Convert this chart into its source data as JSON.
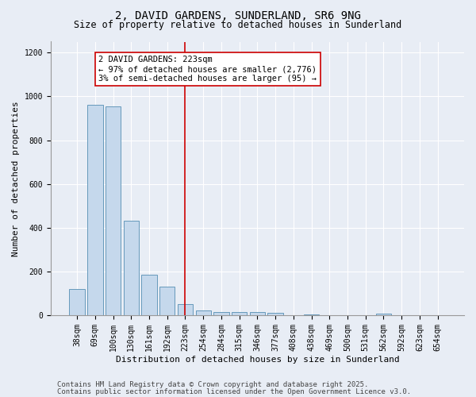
{
  "title1": "2, DAVID GARDENS, SUNDERLAND, SR6 9NG",
  "title2": "Size of property relative to detached houses in Sunderland",
  "xlabel": "Distribution of detached houses by size in Sunderland",
  "ylabel": "Number of detached properties",
  "categories": [
    "38sqm",
    "69sqm",
    "100sqm",
    "130sqm",
    "161sqm",
    "192sqm",
    "223sqm",
    "254sqm",
    "284sqm",
    "315sqm",
    "346sqm",
    "377sqm",
    "408sqm",
    "438sqm",
    "469sqm",
    "500sqm",
    "531sqm",
    "562sqm",
    "592sqm",
    "623sqm",
    "654sqm"
  ],
  "values": [
    120,
    960,
    955,
    430,
    185,
    130,
    50,
    22,
    16,
    15,
    15,
    12,
    0,
    5,
    0,
    0,
    0,
    8,
    0,
    0,
    0
  ],
  "bar_color": "#c5d8ec",
  "bar_edge_color": "#6699bb",
  "highlight_index": 6,
  "highlight_line_color": "#cc0000",
  "annotation_line1": "2 DAVID GARDENS: 223sqm",
  "annotation_line2": "← 97% of detached houses are smaller (2,776)",
  "annotation_line3": "3% of semi-detached houses are larger (95) →",
  "annotation_box_color": "#ffffff",
  "annotation_box_edge_color": "#cc0000",
  "ylim": [
    0,
    1250
  ],
  "yticks": [
    0,
    200,
    400,
    600,
    800,
    1000,
    1200
  ],
  "background_color": "#e8edf5",
  "grid_color": "#ffffff",
  "footer1": "Contains HM Land Registry data © Crown copyright and database right 2025.",
  "footer2": "Contains public sector information licensed under the Open Government Licence v3.0.",
  "title_fontsize": 10,
  "subtitle_fontsize": 8.5,
  "axis_label_fontsize": 8,
  "tick_fontsize": 7,
  "annotation_fontsize": 7.5,
  "footer_fontsize": 6.5
}
